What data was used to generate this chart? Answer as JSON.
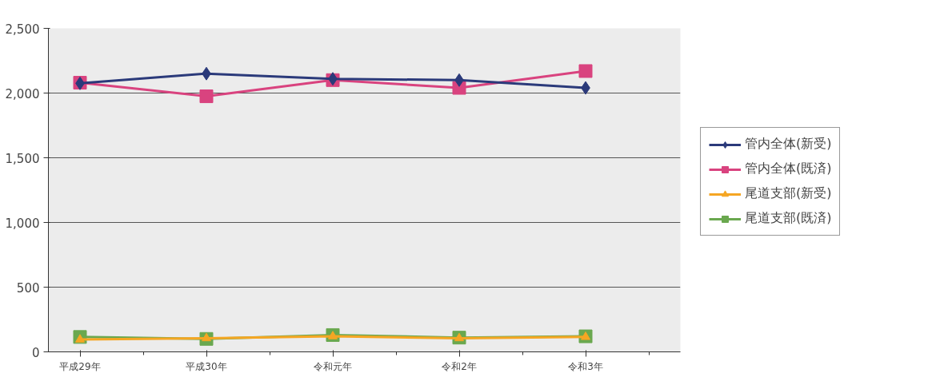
{
  "chart_data": {
    "type": "line",
    "categories": [
      "平成29年",
      "平成30年",
      "令和元年",
      "令和2年",
      "令和3年"
    ],
    "series": [
      {
        "name": "管内全体(新受)",
        "color": "#2b3a7a",
        "marker": "diamond",
        "values": [
          2075,
          2150,
          2110,
          2100,
          2040
        ]
      },
      {
        "name": "管内全体(既済)",
        "color": "#d9437f",
        "marker": "square",
        "values": [
          2080,
          1975,
          2100,
          2040,
          2170
        ]
      },
      {
        "name": "尾道支部(新受)",
        "color": "#f5a623",
        "marker": "triangle",
        "values": [
          95,
          105,
          120,
          105,
          115
        ]
      },
      {
        "name": "尾道支部(既済)",
        "color": "#6aa84f",
        "marker": "square",
        "values": [
          115,
          100,
          130,
          110,
          120
        ]
      }
    ],
    "ylim": [
      0,
      2500
    ],
    "yticks": [
      {
        "value": 0,
        "label": "0"
      },
      {
        "value": 500,
        "label": "500"
      },
      {
        "value": 1000,
        "label": "1,000"
      },
      {
        "value": 1500,
        "label": "1,500"
      },
      {
        "value": 2000,
        "label": "2,000"
      },
      {
        "value": 2500,
        "label": "2,500"
      }
    ],
    "grid": "y",
    "legend": "right"
  }
}
